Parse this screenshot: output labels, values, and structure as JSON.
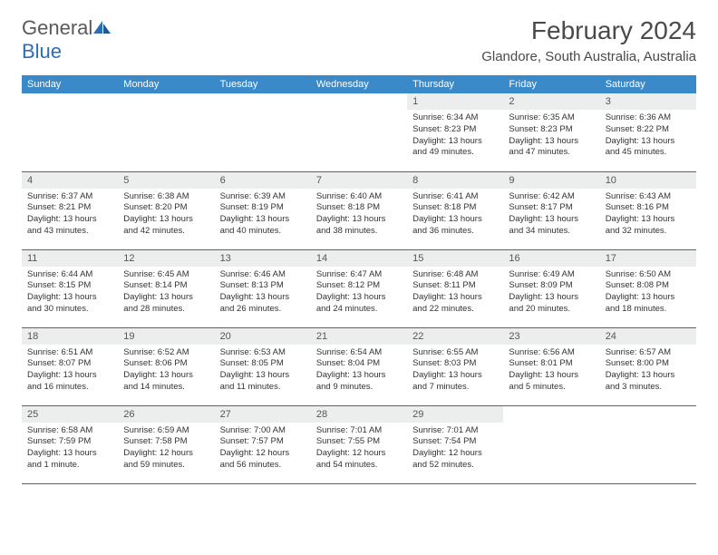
{
  "logo": {
    "word1": "General",
    "word2": "Blue"
  },
  "title": "February 2024",
  "location": "Glandore, South Australia, Australia",
  "colors": {
    "header_bg": "#3a89c9",
    "header_text": "#ffffff",
    "cell_border": "#2a6fb5",
    "daynum_bg": "#eceded",
    "body_text": "#333333",
    "logo_gray": "#5a5a5a",
    "logo_blue": "#2a6fb5"
  },
  "weekdays": [
    "Sunday",
    "Monday",
    "Tuesday",
    "Wednesday",
    "Thursday",
    "Friday",
    "Saturday"
  ],
  "weeks": [
    [
      {
        "empty": true
      },
      {
        "empty": true
      },
      {
        "empty": true
      },
      {
        "empty": true
      },
      {
        "day": "1",
        "sunrise": "Sunrise: 6:34 AM",
        "sunset": "Sunset: 8:23 PM",
        "daylight": "Daylight: 13 hours and 49 minutes."
      },
      {
        "day": "2",
        "sunrise": "Sunrise: 6:35 AM",
        "sunset": "Sunset: 8:23 PM",
        "daylight": "Daylight: 13 hours and 47 minutes."
      },
      {
        "day": "3",
        "sunrise": "Sunrise: 6:36 AM",
        "sunset": "Sunset: 8:22 PM",
        "daylight": "Daylight: 13 hours and 45 minutes."
      }
    ],
    [
      {
        "day": "4",
        "sunrise": "Sunrise: 6:37 AM",
        "sunset": "Sunset: 8:21 PM",
        "daylight": "Daylight: 13 hours and 43 minutes."
      },
      {
        "day": "5",
        "sunrise": "Sunrise: 6:38 AM",
        "sunset": "Sunset: 8:20 PM",
        "daylight": "Daylight: 13 hours and 42 minutes."
      },
      {
        "day": "6",
        "sunrise": "Sunrise: 6:39 AM",
        "sunset": "Sunset: 8:19 PM",
        "daylight": "Daylight: 13 hours and 40 minutes."
      },
      {
        "day": "7",
        "sunrise": "Sunrise: 6:40 AM",
        "sunset": "Sunset: 8:18 PM",
        "daylight": "Daylight: 13 hours and 38 minutes."
      },
      {
        "day": "8",
        "sunrise": "Sunrise: 6:41 AM",
        "sunset": "Sunset: 8:18 PM",
        "daylight": "Daylight: 13 hours and 36 minutes."
      },
      {
        "day": "9",
        "sunrise": "Sunrise: 6:42 AM",
        "sunset": "Sunset: 8:17 PM",
        "daylight": "Daylight: 13 hours and 34 minutes."
      },
      {
        "day": "10",
        "sunrise": "Sunrise: 6:43 AM",
        "sunset": "Sunset: 8:16 PM",
        "daylight": "Daylight: 13 hours and 32 minutes."
      }
    ],
    [
      {
        "day": "11",
        "sunrise": "Sunrise: 6:44 AM",
        "sunset": "Sunset: 8:15 PM",
        "daylight": "Daylight: 13 hours and 30 minutes."
      },
      {
        "day": "12",
        "sunrise": "Sunrise: 6:45 AM",
        "sunset": "Sunset: 8:14 PM",
        "daylight": "Daylight: 13 hours and 28 minutes."
      },
      {
        "day": "13",
        "sunrise": "Sunrise: 6:46 AM",
        "sunset": "Sunset: 8:13 PM",
        "daylight": "Daylight: 13 hours and 26 minutes."
      },
      {
        "day": "14",
        "sunrise": "Sunrise: 6:47 AM",
        "sunset": "Sunset: 8:12 PM",
        "daylight": "Daylight: 13 hours and 24 minutes."
      },
      {
        "day": "15",
        "sunrise": "Sunrise: 6:48 AM",
        "sunset": "Sunset: 8:11 PM",
        "daylight": "Daylight: 13 hours and 22 minutes."
      },
      {
        "day": "16",
        "sunrise": "Sunrise: 6:49 AM",
        "sunset": "Sunset: 8:09 PM",
        "daylight": "Daylight: 13 hours and 20 minutes."
      },
      {
        "day": "17",
        "sunrise": "Sunrise: 6:50 AM",
        "sunset": "Sunset: 8:08 PM",
        "daylight": "Daylight: 13 hours and 18 minutes."
      }
    ],
    [
      {
        "day": "18",
        "sunrise": "Sunrise: 6:51 AM",
        "sunset": "Sunset: 8:07 PM",
        "daylight": "Daylight: 13 hours and 16 minutes."
      },
      {
        "day": "19",
        "sunrise": "Sunrise: 6:52 AM",
        "sunset": "Sunset: 8:06 PM",
        "daylight": "Daylight: 13 hours and 14 minutes."
      },
      {
        "day": "20",
        "sunrise": "Sunrise: 6:53 AM",
        "sunset": "Sunset: 8:05 PM",
        "daylight": "Daylight: 13 hours and 11 minutes."
      },
      {
        "day": "21",
        "sunrise": "Sunrise: 6:54 AM",
        "sunset": "Sunset: 8:04 PM",
        "daylight": "Daylight: 13 hours and 9 minutes."
      },
      {
        "day": "22",
        "sunrise": "Sunrise: 6:55 AM",
        "sunset": "Sunset: 8:03 PM",
        "daylight": "Daylight: 13 hours and 7 minutes."
      },
      {
        "day": "23",
        "sunrise": "Sunrise: 6:56 AM",
        "sunset": "Sunset: 8:01 PM",
        "daylight": "Daylight: 13 hours and 5 minutes."
      },
      {
        "day": "24",
        "sunrise": "Sunrise: 6:57 AM",
        "sunset": "Sunset: 8:00 PM",
        "daylight": "Daylight: 13 hours and 3 minutes."
      }
    ],
    [
      {
        "day": "25",
        "sunrise": "Sunrise: 6:58 AM",
        "sunset": "Sunset: 7:59 PM",
        "daylight": "Daylight: 13 hours and 1 minute."
      },
      {
        "day": "26",
        "sunrise": "Sunrise: 6:59 AM",
        "sunset": "Sunset: 7:58 PM",
        "daylight": "Daylight: 12 hours and 59 minutes."
      },
      {
        "day": "27",
        "sunrise": "Sunrise: 7:00 AM",
        "sunset": "Sunset: 7:57 PM",
        "daylight": "Daylight: 12 hours and 56 minutes."
      },
      {
        "day": "28",
        "sunrise": "Sunrise: 7:01 AM",
        "sunset": "Sunset: 7:55 PM",
        "daylight": "Daylight: 12 hours and 54 minutes."
      },
      {
        "day": "29",
        "sunrise": "Sunrise: 7:01 AM",
        "sunset": "Sunset: 7:54 PM",
        "daylight": "Daylight: 12 hours and 52 minutes."
      },
      {
        "empty": true
      },
      {
        "empty": true
      }
    ]
  ]
}
